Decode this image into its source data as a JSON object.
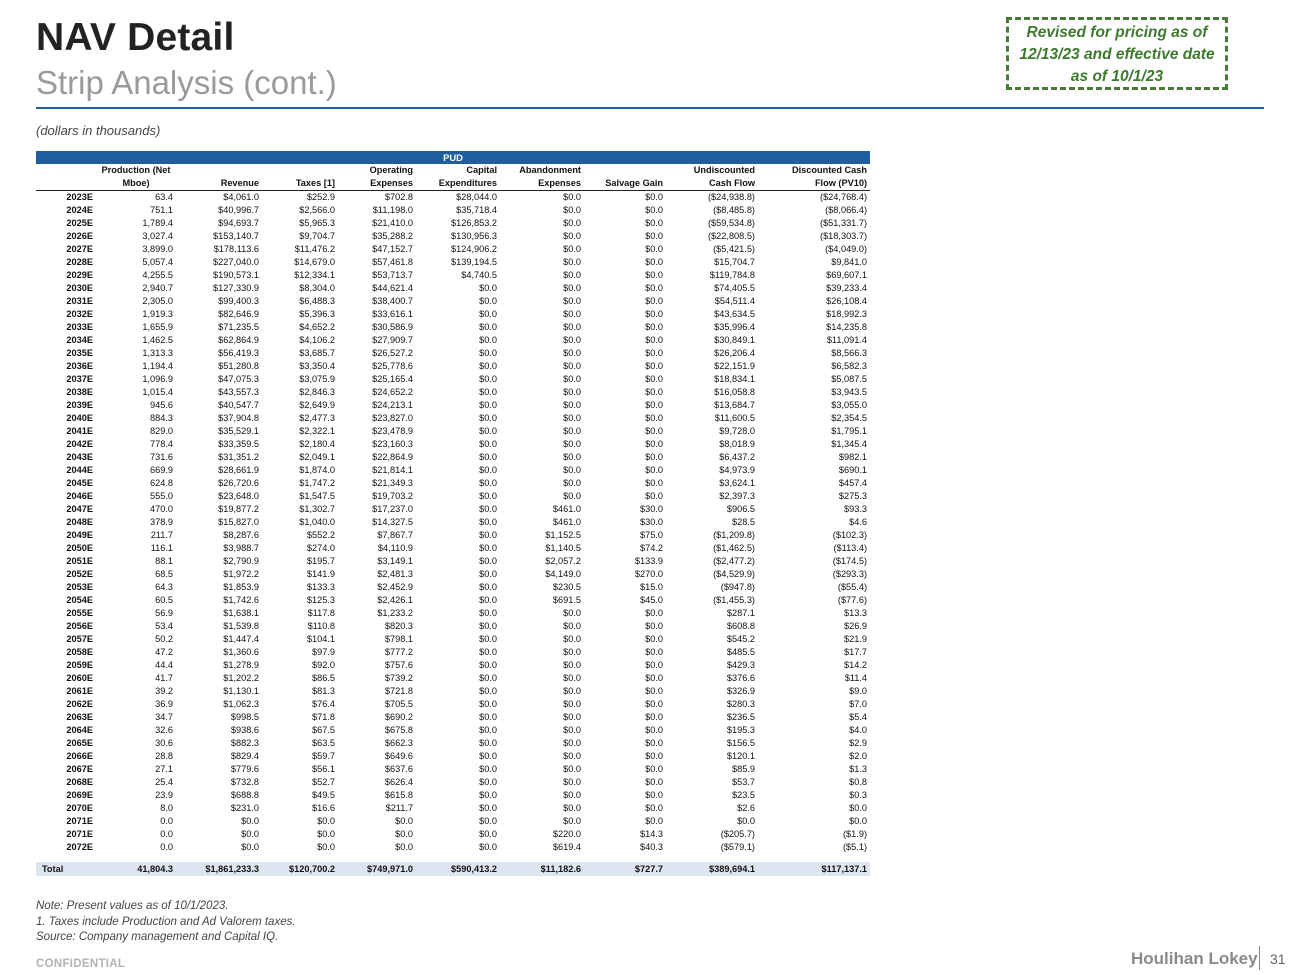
{
  "header": {
    "title": "NAV Detail",
    "subtitle": "Strip Analysis (cont.)",
    "revised_note": "Revised for pricing as of 12/13/23 and effective date as of 10/1/23"
  },
  "units_note": "(dollars in thousands)",
  "table": {
    "group_label": "PUD",
    "columns": [
      [
        "",
        ""
      ],
      [
        "Production (Net",
        "Mboe)"
      ],
      [
        "",
        "Revenue"
      ],
      [
        "",
        "Taxes [1]"
      ],
      [
        "Operating",
        "Expenses"
      ],
      [
        "Capital",
        "Expenditures"
      ],
      [
        "Abandonment",
        "Expenses"
      ],
      [
        "",
        "Salvage Gain"
      ],
      [
        "Undiscounted",
        "Cash Flow"
      ],
      [
        "Discounted Cash",
        "Flow (PV10)"
      ]
    ],
    "rows": [
      [
        "2023E",
        "63.4",
        "$4,061.0",
        "$252.9",
        "$702.8",
        "$28,044.0",
        "$0.0",
        "$0.0",
        "($24,938.8)",
        "($24,768.4)"
      ],
      [
        "2024E",
        "751.1",
        "$40,996.7",
        "$2,566.0",
        "$11,198.0",
        "$35,718.4",
        "$0.0",
        "$0.0",
        "($8,485.8)",
        "($8,066.4)"
      ],
      [
        "2025E",
        "1,789.4",
        "$94,693.7",
        "$5,965.3",
        "$21,410.0",
        "$126,853.2",
        "$0.0",
        "$0.0",
        "($59,534.8)",
        "($51,331.7)"
      ],
      [
        "2026E",
        "3,027.4",
        "$153,140.7",
        "$9,704.7",
        "$35,288.2",
        "$130,956.3",
        "$0.0",
        "$0.0",
        "($22,808.5)",
        "($18,303.7)"
      ],
      [
        "2027E",
        "3,899.0",
        "$178,113.6",
        "$11,476.2",
        "$47,152.7",
        "$124,906.2",
        "$0.0",
        "$0.0",
        "($5,421.5)",
        "($4,049.0)"
      ],
      [
        "2028E",
        "5,057.4",
        "$227,040.0",
        "$14,679.0",
        "$57,461.8",
        "$139,194.5",
        "$0.0",
        "$0.0",
        "$15,704.7",
        "$9,841.0"
      ],
      [
        "2029E",
        "4,255.5",
        "$190,573.1",
        "$12,334.1",
        "$53,713.7",
        "$4,740.5",
        "$0.0",
        "$0.0",
        "$119,784.8",
        "$69,607.1"
      ],
      [
        "2030E",
        "2,940.7",
        "$127,330.9",
        "$8,304.0",
        "$44,621.4",
        "$0.0",
        "$0.0",
        "$0.0",
        "$74,405.5",
        "$39,233.4"
      ],
      [
        "2031E",
        "2,305.0",
        "$99,400.3",
        "$6,488.3",
        "$38,400.7",
        "$0.0",
        "$0.0",
        "$0.0",
        "$54,511.4",
        "$26,108.4"
      ],
      [
        "2032E",
        "1,919.3",
        "$82,646.9",
        "$5,396.3",
        "$33,616.1",
        "$0.0",
        "$0.0",
        "$0.0",
        "$43,634.5",
        "$18,992.3"
      ],
      [
        "2033E",
        "1,655.9",
        "$71,235.5",
        "$4,652.2",
        "$30,586.9",
        "$0.0",
        "$0.0",
        "$0.0",
        "$35,996.4",
        "$14,235.8"
      ],
      [
        "2034E",
        "1,462.5",
        "$62,864.9",
        "$4,106.2",
        "$27,909.7",
        "$0.0",
        "$0.0",
        "$0.0",
        "$30,849.1",
        "$11,091.4"
      ],
      [
        "2035E",
        "1,313.3",
        "$56,419.3",
        "$3,685.7",
        "$26,527.2",
        "$0.0",
        "$0.0",
        "$0.0",
        "$26,206.4",
        "$8,566.3"
      ],
      [
        "2036E",
        "1,194.4",
        "$51,280.8",
        "$3,350.4",
        "$25,778.6",
        "$0.0",
        "$0.0",
        "$0.0",
        "$22,151.9",
        "$6,582.3"
      ],
      [
        "2037E",
        "1,096.9",
        "$47,075.3",
        "$3,075.9",
        "$25,165.4",
        "$0.0",
        "$0.0",
        "$0.0",
        "$18,834.1",
        "$5,087.5"
      ],
      [
        "2038E",
        "1,015.4",
        "$43,557.3",
        "$2,846.3",
        "$24,652.2",
        "$0.0",
        "$0.0",
        "$0.0",
        "$16,058.8",
        "$3,943.5"
      ],
      [
        "2039E",
        "945.6",
        "$40,547.7",
        "$2,649.9",
        "$24,213.1",
        "$0.0",
        "$0.0",
        "$0.0",
        "$13,684.7",
        "$3,055.0"
      ],
      [
        "2040E",
        "884.3",
        "$37,904.8",
        "$2,477.3",
        "$23,827.0",
        "$0.0",
        "$0.0",
        "$0.0",
        "$11,600.5",
        "$2,354.5"
      ],
      [
        "2041E",
        "829.0",
        "$35,529.1",
        "$2,322.1",
        "$23,478.9",
        "$0.0",
        "$0.0",
        "$0.0",
        "$9,728.0",
        "$1,795.1"
      ],
      [
        "2042E",
        "778.4",
        "$33,359.5",
        "$2,180.4",
        "$23,160.3",
        "$0.0",
        "$0.0",
        "$0.0",
        "$8,018.9",
        "$1,345.4"
      ],
      [
        "2043E",
        "731.6",
        "$31,351.2",
        "$2,049.1",
        "$22,864.9",
        "$0.0",
        "$0.0",
        "$0.0",
        "$6,437.2",
        "$982.1"
      ],
      [
        "2044E",
        "669.9",
        "$28,661.9",
        "$1,874.0",
        "$21,814.1",
        "$0.0",
        "$0.0",
        "$0.0",
        "$4,973.9",
        "$690.1"
      ],
      [
        "2045E",
        "624.8",
        "$26,720.6",
        "$1,747.2",
        "$21,349.3",
        "$0.0",
        "$0.0",
        "$0.0",
        "$3,624.1",
        "$457.4"
      ],
      [
        "2046E",
        "555.0",
        "$23,648.0",
        "$1,547.5",
        "$19,703.2",
        "$0.0",
        "$0.0",
        "$0.0",
        "$2,397.3",
        "$275.3"
      ],
      [
        "2047E",
        "470.0",
        "$19,877.2",
        "$1,302.7",
        "$17,237.0",
        "$0.0",
        "$461.0",
        "$30.0",
        "$906.5",
        "$93.3"
      ],
      [
        "2048E",
        "378.9",
        "$15,827.0",
        "$1,040.0",
        "$14,327.5",
        "$0.0",
        "$461.0",
        "$30.0",
        "$28.5",
        "$4.6"
      ],
      [
        "2049E",
        "211.7",
        "$8,287.6",
        "$552.2",
        "$7,867.7",
        "$0.0",
        "$1,152.5",
        "$75.0",
        "($1,209.8)",
        "($102.3)"
      ],
      [
        "2050E",
        "116.1",
        "$3,988.7",
        "$274.0",
        "$4,110.9",
        "$0.0",
        "$1,140.5",
        "$74.2",
        "($1,462.5)",
        "($113.4)"
      ],
      [
        "2051E",
        "88.1",
        "$2,790.9",
        "$195.7",
        "$3,149.1",
        "$0.0",
        "$2,057.2",
        "$133.9",
        "($2,477.2)",
        "($174.5)"
      ],
      [
        "2052E",
        "68.5",
        "$1,972.2",
        "$141.9",
        "$2,481.3",
        "$0.0",
        "$4,149.0",
        "$270.0",
        "($4,529.9)",
        "($293.3)"
      ],
      [
        "2053E",
        "64.3",
        "$1,853.9",
        "$133.3",
        "$2,452.9",
        "$0.0",
        "$230.5",
        "$15.0",
        "($947.8)",
        "($55.4)"
      ],
      [
        "2054E",
        "60.5",
        "$1,742.6",
        "$125.3",
        "$2,426.1",
        "$0.0",
        "$691.5",
        "$45.0",
        "($1,455.3)",
        "($77.6)"
      ],
      [
        "2055E",
        "56.9",
        "$1,638.1",
        "$117.8",
        "$1,233.2",
        "$0.0",
        "$0.0",
        "$0.0",
        "$287.1",
        "$13.3"
      ],
      [
        "2056E",
        "53.4",
        "$1,539.8",
        "$110.8",
        "$820.3",
        "$0.0",
        "$0.0",
        "$0.0",
        "$608.8",
        "$26.9"
      ],
      [
        "2057E",
        "50.2",
        "$1,447.4",
        "$104.1",
        "$798.1",
        "$0.0",
        "$0.0",
        "$0.0",
        "$545.2",
        "$21.9"
      ],
      [
        "2058E",
        "47.2",
        "$1,360.6",
        "$97.9",
        "$777.2",
        "$0.0",
        "$0.0",
        "$0.0",
        "$485.5",
        "$17.7"
      ],
      [
        "2059E",
        "44.4",
        "$1,278.9",
        "$92.0",
        "$757.6",
        "$0.0",
        "$0.0",
        "$0.0",
        "$429.3",
        "$14.2"
      ],
      [
        "2060E",
        "41.7",
        "$1,202.2",
        "$86.5",
        "$739.2",
        "$0.0",
        "$0.0",
        "$0.0",
        "$376.6",
        "$11.4"
      ],
      [
        "2061E",
        "39.2",
        "$1,130.1",
        "$81.3",
        "$721.8",
        "$0.0",
        "$0.0",
        "$0.0",
        "$326.9",
        "$9.0"
      ],
      [
        "2062E",
        "36.9",
        "$1,062.3",
        "$76.4",
        "$705.5",
        "$0.0",
        "$0.0",
        "$0.0",
        "$280.3",
        "$7.0"
      ],
      [
        "2063E",
        "34.7",
        "$998.5",
        "$71.8",
        "$690.2",
        "$0.0",
        "$0.0",
        "$0.0",
        "$236.5",
        "$5.4"
      ],
      [
        "2064E",
        "32.6",
        "$938.6",
        "$67.5",
        "$675.8",
        "$0.0",
        "$0.0",
        "$0.0",
        "$195.3",
        "$4.0"
      ],
      [
        "2065E",
        "30.6",
        "$882.3",
        "$63.5",
        "$662.3",
        "$0.0",
        "$0.0",
        "$0.0",
        "$156.5",
        "$2.9"
      ],
      [
        "2066E",
        "28.8",
        "$829.4",
        "$59.7",
        "$649.6",
        "$0.0",
        "$0.0",
        "$0.0",
        "$120.1",
        "$2.0"
      ],
      [
        "2067E",
        "27.1",
        "$779.6",
        "$56.1",
        "$637.6",
        "$0.0",
        "$0.0",
        "$0.0",
        "$85.9",
        "$1.3"
      ],
      [
        "2068E",
        "25.4",
        "$732.8",
        "$52.7",
        "$626.4",
        "$0.0",
        "$0.0",
        "$0.0",
        "$53.7",
        "$0.8"
      ],
      [
        "2069E",
        "23.9",
        "$688.8",
        "$49.5",
        "$615.8",
        "$0.0",
        "$0.0",
        "$0.0",
        "$23.5",
        "$0.3"
      ],
      [
        "2070E",
        "8.0",
        "$231.0",
        "$16.6",
        "$211.7",
        "$0.0",
        "$0.0",
        "$0.0",
        "$2.6",
        "$0.0"
      ],
      [
        "2071E",
        "0.0",
        "$0.0",
        "$0.0",
        "$0.0",
        "$0.0",
        "$0.0",
        "$0.0",
        "$0.0",
        "$0.0"
      ],
      [
        "2071E",
        "0.0",
        "$0.0",
        "$0.0",
        "$0.0",
        "$0.0",
        "$220.0",
        "$14.3",
        "($205.7)",
        "($1.9)"
      ],
      [
        "2072E",
        "0.0",
        "$0.0",
        "$0.0",
        "$0.0",
        "$0.0",
        "$619.4",
        "$40.3",
        "($579.1)",
        "($5.1)"
      ]
    ],
    "total": [
      "Total",
      "41,804.3",
      "$1,861,233.3",
      "$120,700.2",
      "$749,971.0",
      "$590,413.2",
      "$11,182.6",
      "$727.7",
      "$389,694.1",
      "$117,137.1"
    ]
  },
  "notes": [
    "Note: Present values as of 10/1/2023.",
    "1. Taxes include Production and Ad Valorem taxes.",
    "Source: Company management and Capital IQ."
  ],
  "footer": {
    "confidential": "CONFIDENTIAL",
    "logo_text": "Houlihan Lokey",
    "page_number": "31"
  },
  "colors": {
    "accent_blue": "#1f5fa0",
    "revised_green": "#3d7a2e",
    "total_row_bg": "#dde6f0"
  }
}
